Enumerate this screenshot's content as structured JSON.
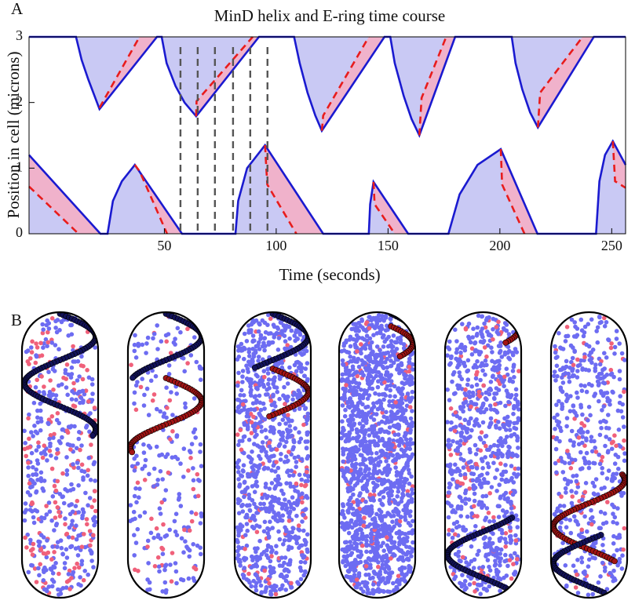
{
  "panel_labels": [
    "A",
    "B"
  ],
  "chart_data": {
    "type": "line",
    "title": "MinD helix and E-ring time course",
    "x_label": "Time (seconds)",
    "y_label": "Position in cell (microns)",
    "xlim": [
      -10.5,
      256.2
    ],
    "ylim": [
      0,
      3
    ],
    "xticks": [
      50,
      100,
      150,
      200,
      250
    ],
    "yticks": [
      0,
      1,
      2,
      3
    ],
    "snapshot_lines": {
      "x": [
        57.2,
        64.9,
        72.6,
        80.7,
        88.4,
        96.1
      ],
      "color": "#555555"
    },
    "series": [
      {
        "color": "#1a1ad0",
        "fill": "#c9c9f4",
        "fill_to": "top",
        "style": "solid",
        "x": [
          -10.5,
          10.5,
          13,
          16,
          19,
          21,
          46.7,
          48.8,
          51,
          55,
          59,
          64.2,
          92.3,
          108,
          110.5,
          114,
          117.5,
          120.4,
          148.4,
          151,
          153,
          157,
          160.5,
          164,
          180,
          205.3,
          207,
          210,
          213.5,
          217,
          242,
          256.2
        ],
        "values": [
          3,
          3,
          2.65,
          2.35,
          2.08,
          1.9,
          3,
          3,
          2.6,
          2.25,
          2,
          1.79,
          3,
          3,
          2.6,
          2.15,
          1.8,
          1.57,
          3,
          3,
          2.6,
          2.1,
          1.75,
          1.5,
          3,
          3,
          2.6,
          2.2,
          1.85,
          1.62,
          3,
          3
        ]
      },
      {
        "color": "#1a1ad0",
        "fill": "#c9c9f4",
        "fill_to": "bottom",
        "style": "solid",
        "x": [
          -10.5,
          21.4,
          24.6,
          27,
          31,
          36.8,
          57.9,
          81.8,
          83,
          87,
          95,
          121,
          141.4,
          142,
          143.5,
          159,
          177,
          182,
          190,
          200.4,
          216.8,
          243,
          244.5,
          247,
          250.5,
          256.2
        ],
        "values": [
          1.2,
          0,
          0,
          0.5,
          0.8,
          1.05,
          0,
          0,
          0.5,
          1.0,
          1.35,
          0,
          0,
          0.45,
          0.79,
          0,
          0,
          0.6,
          1.05,
          1.29,
          0,
          0,
          0.8,
          1.2,
          1.41,
          1.05
        ]
      },
      {
        "color": "#e81c1c",
        "fill": "#f0b2cb",
        "fill_to": "top",
        "style": "dashed",
        "x": [
          21,
          38.9,
          null,
          64.2,
          64.4,
          89.5,
          null,
          120.4,
          121,
          141.4,
          null,
          164,
          165,
          176,
          null,
          217,
          218,
          237
        ],
        "values": [
          1.92,
          3,
          null,
          1.79,
          2.02,
          3,
          null,
          1.57,
          1.8,
          3,
          null,
          1.5,
          2.07,
          3,
          null,
          1.62,
          2.15,
          3
        ]
      },
      {
        "color": "#e81c1c",
        "fill": "#f0b2cb",
        "fill_to": "bottom",
        "style": "dashed",
        "x": [
          -10.5,
          11.6,
          null,
          36.8,
          39,
          51.2,
          null,
          95,
          96,
          109,
          null,
          143.5,
          144,
          153,
          null,
          200.4,
          201,
          211,
          null,
          250.5,
          251.5,
          256.2
        ],
        "values": [
          0.72,
          0,
          null,
          1.05,
          0.95,
          0,
          null,
          1.35,
          0.75,
          0,
          null,
          0.79,
          0.45,
          0,
          null,
          1.29,
          0.75,
          0,
          null,
          1.41,
          0.8,
          0.7
        ]
      }
    ]
  }
}
